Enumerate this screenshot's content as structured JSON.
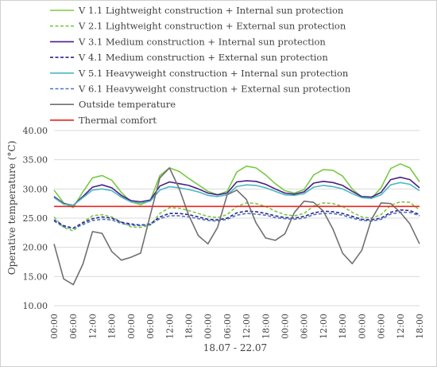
{
  "chart_data": {
    "type": "line",
    "title": "",
    "xlabel": "18.07 - 22.07",
    "ylabel": "Operative temperature (°C)",
    "ylim": [
      10,
      40
    ],
    "yticks": [
      "10.00",
      "15.00",
      "20.00",
      "25.00",
      "30.00",
      "35.00",
      "40.00"
    ],
    "xticks": [
      "00:00",
      "06:00",
      "12:00",
      "18:00",
      "00:00",
      "06:00",
      "12:00",
      "18:00",
      "00:00",
      "06:00",
      "12:00",
      "18:00",
      "00:00",
      "06:00",
      "12:00",
      "18:00",
      "00:00",
      "06:00",
      "12:00",
      "18:00"
    ],
    "x_range": [
      0,
      114
    ],
    "grid": true,
    "legend_position": "top",
    "x": [
      0,
      3,
      6,
      9,
      12,
      15,
      18,
      21,
      24,
      27,
      30,
      33,
      36,
      39,
      42,
      45,
      48,
      51,
      54,
      57,
      60,
      63,
      66,
      69,
      72,
      75,
      78,
      81,
      84,
      87,
      90,
      93,
      96,
      99,
      102,
      105,
      108,
      111,
      114
    ],
    "series": [
      {
        "name": "V 1.1 Lightweight construction + Internal sun protection",
        "color": "#7ac943",
        "dash": "solid",
        "values": [
          29.8,
          27.6,
          26.8,
          29.5,
          31.9,
          32.3,
          31.5,
          29.4,
          27.8,
          27.3,
          28.0,
          32.3,
          33.6,
          33.0,
          31.8,
          30.7,
          29.6,
          29.0,
          29.6,
          32.9,
          33.9,
          33.6,
          32.4,
          30.9,
          29.7,
          29.3,
          29.9,
          32.4,
          33.3,
          33.2,
          32.2,
          30.0,
          28.6,
          28.4,
          30.2,
          33.5,
          34.3,
          33.6,
          31.2
        ]
      },
      {
        "name": "V 2.1 Lightweight construction + External sun protection",
        "color": "#7ac943",
        "dash": "dashed",
        "values": [
          25.2,
          23.4,
          22.8,
          24.3,
          25.4,
          25.6,
          25.2,
          24.3,
          23.5,
          23.4,
          23.8,
          25.8,
          26.8,
          26.7,
          26.3,
          25.8,
          25.3,
          25.1,
          25.6,
          27.0,
          27.6,
          27.5,
          27.0,
          26.2,
          25.6,
          25.4,
          25.8,
          27.1,
          27.6,
          27.5,
          27.0,
          26.0,
          25.2,
          25.0,
          25.6,
          27.2,
          27.8,
          27.7,
          26.4
        ]
      },
      {
        "name": "V 3.1 Medium construction + Internal sun protection",
        "color": "#4b1e86",
        "dash": "solid",
        "values": [
          28.7,
          27.5,
          27.2,
          28.7,
          30.3,
          30.7,
          30.2,
          28.9,
          28.0,
          27.8,
          28.1,
          30.5,
          31.2,
          30.9,
          30.6,
          30.0,
          29.3,
          29.0,
          29.3,
          31.2,
          31.4,
          31.3,
          30.8,
          30.0,
          29.3,
          29.1,
          29.5,
          31.0,
          31.3,
          31.1,
          30.6,
          29.6,
          28.7,
          28.6,
          29.4,
          31.6,
          32.0,
          31.6,
          30.2
        ]
      },
      {
        "name": "V 4.1 Medium construction + External sun protection",
        "color": "#32208f",
        "dash": "dashed",
        "values": [
          24.7,
          23.7,
          23.3,
          24.2,
          24.9,
          25.2,
          25.0,
          24.3,
          24.0,
          23.8,
          24.0,
          25.2,
          25.8,
          25.8,
          25.6,
          25.2,
          24.8,
          24.7,
          25.0,
          25.9,
          26.2,
          26.1,
          25.8,
          25.4,
          25.1,
          25.0,
          25.3,
          25.9,
          26.2,
          26.1,
          25.8,
          25.3,
          24.8,
          24.7,
          25.0,
          26.0,
          26.4,
          26.3,
          25.6
        ]
      },
      {
        "name": "V 5.1 Heavyweight construction + Internal sun protection",
        "color": "#4bb8c0",
        "dash": "solid",
        "values": [
          28.5,
          27.4,
          27.2,
          28.5,
          29.8,
          30.0,
          29.7,
          28.6,
          27.8,
          27.6,
          27.9,
          29.8,
          30.4,
          30.2,
          29.9,
          29.5,
          28.9,
          28.7,
          29.0,
          30.4,
          30.7,
          30.6,
          30.2,
          29.6,
          29.0,
          28.9,
          29.2,
          30.3,
          30.6,
          30.4,
          30.0,
          29.2,
          28.5,
          28.4,
          29.0,
          30.7,
          31.1,
          30.8,
          29.7
        ]
      },
      {
        "name": "V 6.1 Heavyweight construction + External sun protection",
        "color": "#4a74c4",
        "dash": "dashed",
        "values": [
          24.5,
          23.5,
          23.2,
          23.9,
          24.6,
          24.8,
          24.7,
          24.1,
          23.8,
          23.7,
          23.9,
          24.9,
          25.4,
          25.4,
          25.2,
          24.9,
          24.6,
          24.5,
          24.8,
          25.5,
          25.8,
          25.7,
          25.5,
          25.1,
          24.9,
          24.8,
          25.0,
          25.6,
          25.8,
          25.8,
          25.5,
          25.0,
          24.6,
          24.5,
          24.8,
          25.7,
          26.0,
          26.0,
          25.4
        ]
      },
      {
        "name": "Outside temperature",
        "color": "#707070",
        "dash": "solid",
        "values": [
          20.6,
          14.6,
          13.6,
          17.1,
          22.7,
          22.4,
          19.3,
          17.8,
          18.3,
          19.0,
          25.5,
          31.9,
          33.6,
          30.1,
          25.5,
          22.0,
          20.6,
          23.4,
          29.0,
          29.8,
          28.2,
          24.2,
          21.6,
          21.2,
          22.3,
          26.0,
          27.9,
          27.7,
          26.2,
          23.1,
          19.0,
          17.2,
          19.5,
          24.8,
          27.6,
          27.5,
          26.0,
          24.0,
          20.6
        ]
      },
      {
        "name": "Thermal comfort",
        "color": "#e8261f",
        "dash": "solid",
        "values": [
          27,
          27,
          27,
          27,
          27,
          27,
          27,
          27,
          27,
          27,
          27,
          27,
          27,
          27,
          27,
          27,
          27,
          27,
          27,
          27,
          27,
          27,
          27,
          27,
          27,
          27,
          27,
          27,
          27,
          27,
          27,
          27,
          27,
          27,
          27,
          27,
          27,
          27,
          27
        ]
      }
    ]
  }
}
